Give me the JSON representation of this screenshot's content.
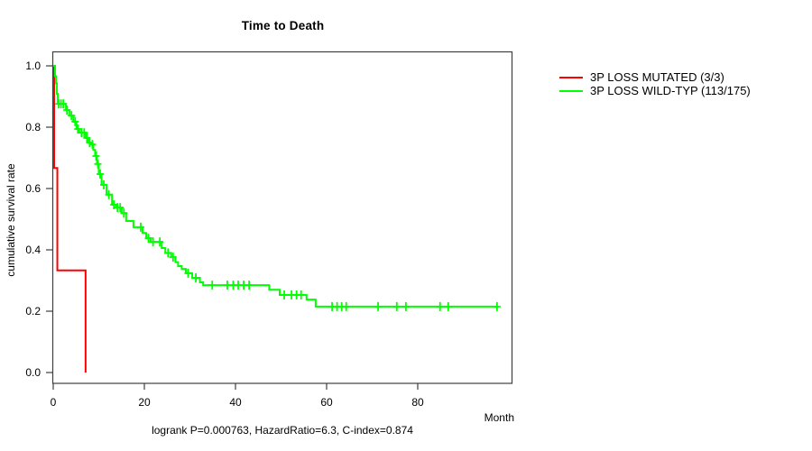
{
  "chart_data": {
    "type": "line",
    "subtype": "kaplan-meier-step-curve",
    "title": "Time to Death",
    "xlabel": "Month",
    "ylabel": "cumulative survival rate",
    "footer": "logrank P=0.000763, HazardRatio=6.3, C-index=0.874",
    "xlim": [
      0,
      100
    ],
    "ylim": [
      0.0,
      1.0
    ],
    "xticks": [
      0,
      20,
      40,
      60,
      80
    ],
    "yticks": [
      0.0,
      0.2,
      0.4,
      0.6,
      0.8,
      1.0
    ],
    "grid": false,
    "legend_position": "outside-top-right",
    "axis_color": "#3f3f3f",
    "series": [
      {
        "name": "3P LOSS MUTATED (3/3)",
        "color": "#ff0000",
        "steps": [
          [
            0,
            1.0
          ],
          [
            0.2,
            0.667
          ],
          [
            0.9,
            0.333
          ],
          [
            7.1,
            0.0
          ]
        ],
        "censor_times": [],
        "end_time": 7.1
      },
      {
        "name": "3P LOSS WILD-TYP (113/175)",
        "color": "#00ff00",
        "steps": [
          [
            0,
            1.0
          ],
          [
            0.4,
            0.966
          ],
          [
            0.6,
            0.943
          ],
          [
            0.8,
            0.909
          ],
          [
            1.0,
            0.876
          ],
          [
            2.8,
            0.856
          ],
          [
            3.6,
            0.838
          ],
          [
            4.4,
            0.818
          ],
          [
            5.1,
            0.794
          ],
          [
            5.7,
            0.782
          ],
          [
            7.1,
            0.765
          ],
          [
            7.7,
            0.75
          ],
          [
            8.3,
            0.744
          ],
          [
            8.8,
            0.726
          ],
          [
            9.2,
            0.706
          ],
          [
            9.6,
            0.68
          ],
          [
            10.0,
            0.647
          ],
          [
            10.6,
            0.612
          ],
          [
            11.7,
            0.58
          ],
          [
            12.9,
            0.547
          ],
          [
            13.8,
            0.538
          ],
          [
            15.0,
            0.52
          ],
          [
            16.0,
            0.494
          ],
          [
            17.6,
            0.474
          ],
          [
            19.6,
            0.455
          ],
          [
            20.4,
            0.438
          ],
          [
            21.4,
            0.426
          ],
          [
            23.8,
            0.406
          ],
          [
            24.6,
            0.39
          ],
          [
            25.9,
            0.376
          ],
          [
            26.8,
            0.36
          ],
          [
            27.4,
            0.347
          ],
          [
            28.2,
            0.338
          ],
          [
            29.1,
            0.324
          ],
          [
            30.5,
            0.309
          ],
          [
            32.2,
            0.294
          ],
          [
            32.9,
            0.285
          ],
          [
            47.4,
            0.27
          ],
          [
            49.7,
            0.253
          ],
          [
            55.6,
            0.238
          ],
          [
            57.6,
            0.215
          ]
        ],
        "censor_times": [
          1.2,
          1.7,
          2.2,
          3.0,
          4.0,
          4.8,
          5.4,
          6.2,
          6.8,
          7.4,
          8.0,
          8.6,
          9.4,
          9.8,
          10.3,
          11.1,
          12.2,
          13.3,
          14.1,
          14.7,
          15.5,
          19.2,
          20.9,
          21.9,
          23.4,
          25.2,
          26.3,
          29.6,
          31.3,
          34.9,
          38.2,
          39.5,
          40.6,
          41.8,
          43.0,
          50.7,
          52.3,
          53.4,
          54.4,
          61.2,
          62.3,
          63.3,
          64.3,
          71.3,
          75.4,
          77.4,
          84.9,
          86.7,
          97.4
        ],
        "end_time": 97.6
      }
    ]
  }
}
